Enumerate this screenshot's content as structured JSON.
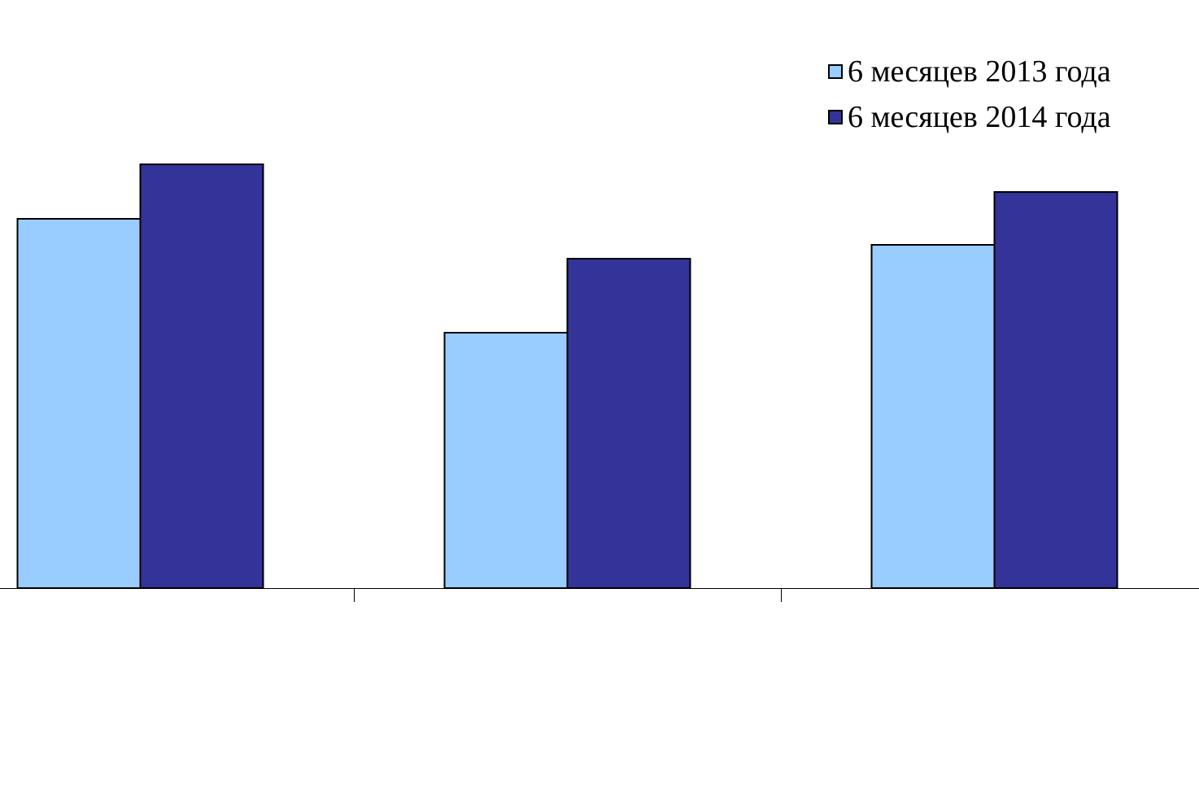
{
  "chart_data": {
    "type": "bar",
    "categories": [
      "",
      "",
      ""
    ],
    "series": [
      {
        "name": "6 месяцев 2013 года",
        "color": "#99CCFF",
        "values": [
          454,
          314,
          422
        ]
      },
      {
        "name": "6 месяцев 2014 года",
        "color": "#333399",
        "values": [
          521,
          405,
          487
        ]
      }
    ],
    "ylim": [
      0,
      723
    ],
    "grid": false,
    "legend_position": "top-right",
    "title": "",
    "xlabel": "",
    "ylabel": ""
  }
}
